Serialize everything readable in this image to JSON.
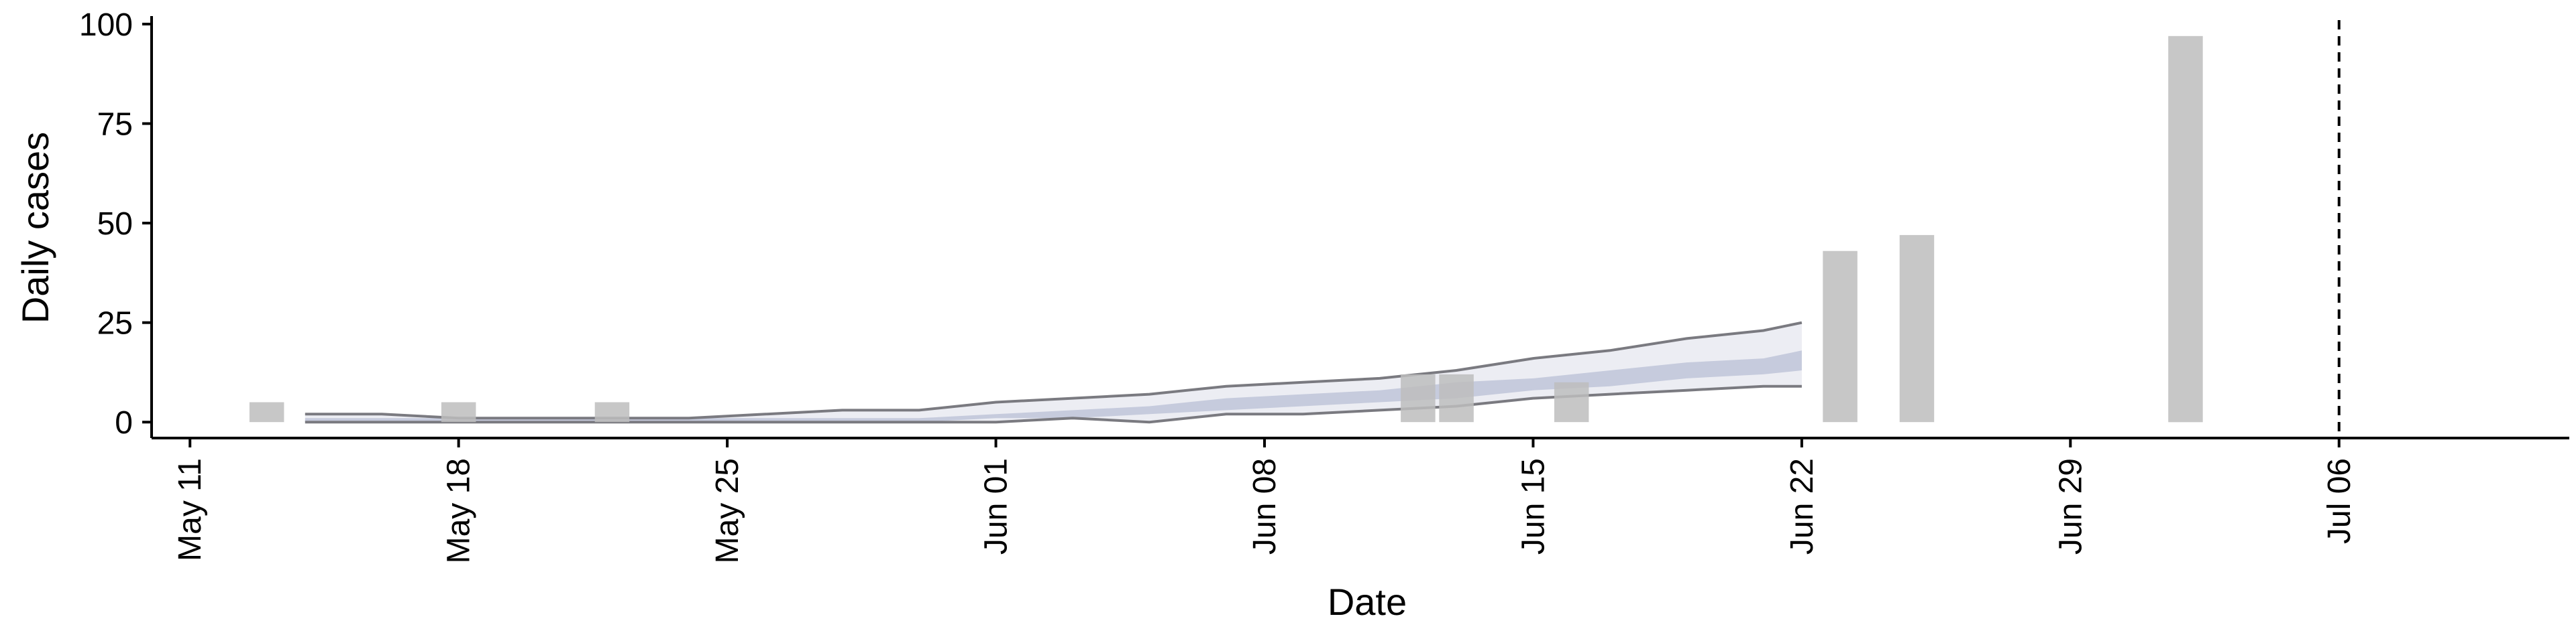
{
  "chart_data": {
    "type": "bar",
    "title": "",
    "xlabel": "Date",
    "ylabel": "Daily cases",
    "x_range": [
      "2020-05-10",
      "2020-07-12"
    ],
    "ylim": [
      -4,
      101
    ],
    "x_ticks": [
      {
        "date": "2020-05-11",
        "label": "May 11"
      },
      {
        "date": "2020-05-18",
        "label": "May 18"
      },
      {
        "date": "2020-05-25",
        "label": "May 25"
      },
      {
        "date": "2020-06-01",
        "label": "Jun 01"
      },
      {
        "date": "2020-06-08",
        "label": "Jun 08"
      },
      {
        "date": "2020-06-15",
        "label": "Jun 15"
      },
      {
        "date": "2020-06-22",
        "label": "Jun 22"
      },
      {
        "date": "2020-06-29",
        "label": "Jun 29"
      },
      {
        "date": "2020-07-06",
        "label": "Jul 06"
      }
    ],
    "y_ticks": [
      0,
      25,
      50,
      75,
      100
    ],
    "vline": {
      "date": "2020-07-06",
      "style": "dashed"
    },
    "grid": false,
    "colors": {
      "bars": "#bdbdbd",
      "interval_outer_fill": "#ecedf3",
      "interval_inner_fill": "#c6cbdd",
      "interval_outer_lines": "#7a7a80",
      "axis": "#000000"
    },
    "cases": [
      {
        "date": "2020-05-13",
        "value": 5
      },
      {
        "date": "2020-05-18",
        "value": 5
      },
      {
        "date": "2020-05-22",
        "value": 5
      },
      {
        "date": "2020-06-12",
        "value": 12
      },
      {
        "date": "2020-06-13",
        "value": 12
      },
      {
        "date": "2020-06-16",
        "value": 10
      },
      {
        "date": "2020-06-23",
        "value": 43
      },
      {
        "date": "2020-06-25",
        "value": 47
      },
      {
        "date": "2020-07-02",
        "value": 97
      }
    ],
    "estimate_band": {
      "dates": [
        "2020-05-14",
        "2020-05-16",
        "2020-05-18",
        "2020-05-20",
        "2020-05-22",
        "2020-05-24",
        "2020-05-26",
        "2020-05-28",
        "2020-05-30",
        "2020-06-01",
        "2020-06-03",
        "2020-06-05",
        "2020-06-07",
        "2020-06-09",
        "2020-06-11",
        "2020-06-13",
        "2020-06-15",
        "2020-06-17",
        "2020-06-19",
        "2020-06-21",
        "2020-06-22"
      ],
      "outer_upper": [
        2,
        2,
        1,
        1,
        1,
        1,
        2,
        3,
        3,
        5,
        6,
        7,
        9,
        10,
        11,
        13,
        16,
        18,
        21,
        23,
        25
      ],
      "outer_lower": [
        0,
        0,
        0,
        0,
        0,
        0,
        0,
        0,
        0,
        0,
        1,
        0,
        2,
        2,
        3,
        4,
        6,
        7,
        8,
        9,
        9
      ],
      "inner_upper": [
        1,
        1,
        1,
        1,
        1,
        1,
        1,
        1,
        1,
        2,
        3,
        4,
        6,
        7,
        8,
        10,
        11,
        13,
        15,
        16,
        18
      ],
      "inner_lower": [
        0,
        0,
        0,
        0,
        0,
        0,
        0,
        0,
        0,
        1,
        1,
        2,
        3,
        4,
        5,
        6,
        8,
        9,
        11,
        12,
        13
      ]
    }
  }
}
